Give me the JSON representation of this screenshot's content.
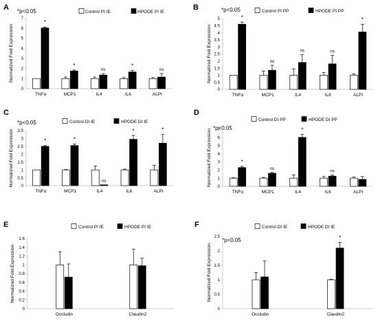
{
  "colors": {
    "control_fill": "#ffffff",
    "treatment_fill": "#000000",
    "stroke": "#000000",
    "axis": "#bfbfbf",
    "text": "#000000"
  },
  "chart_data": [
    {
      "type": "bar",
      "panel": "A",
      "significance_note": "*p<0.05",
      "ylabel": "Normalized Fold Expression",
      "ylim": [
        0,
        7
      ],
      "yticks": [
        0,
        1,
        2,
        3,
        4,
        5,
        6,
        7
      ],
      "grid": false,
      "legend": "top",
      "categories": [
        "TNFα",
        "MCP1",
        "IL4",
        "IL6",
        "ALPI"
      ],
      "series": [
        {
          "name": "Control PI IE",
          "values": [
            1,
            1,
            1,
            1,
            1
          ],
          "errors": [
            0,
            0.15,
            0.15,
            0.1,
            0.1
          ]
        },
        {
          "name": "HPODE PI IE",
          "values": [
            6.0,
            1.75,
            1.35,
            1.65,
            1.15
          ],
          "errors": [
            0.1,
            0.1,
            0.15,
            0.15,
            0.35
          ]
        }
      ],
      "annotations": [
        "*",
        "*",
        "ns",
        "*",
        "ns"
      ]
    },
    {
      "type": "bar",
      "panel": "B",
      "significance_note": "*p<0.05",
      "ylabel": "Normalized Fold Expression",
      "ylim": [
        0,
        5
      ],
      "yticks": [
        0,
        0.5,
        1,
        1.5,
        2,
        2.5,
        3,
        3.5,
        4,
        4.5,
        5
      ],
      "grid": false,
      "legend": "top",
      "categories": [
        "TNFα",
        "MCP1",
        "IL4",
        "IL6",
        "ALPI"
      ],
      "series": [
        {
          "name": "Control PI PP",
          "values": [
            1,
            1,
            1,
            1,
            1
          ],
          "errors": [
            0,
            0.3,
            0.45,
            0.2,
            0.1
          ]
        },
        {
          "name": "HPODE PI PP",
          "values": [
            4.6,
            1.35,
            1.9,
            1.8,
            4.05
          ],
          "errors": [
            0.15,
            0.35,
            0.55,
            0.6,
            0.55
          ]
        }
      ],
      "annotations": [
        "*",
        "ns",
        "ns",
        "ns",
        "*"
      ]
    },
    {
      "type": "bar",
      "panel": "C",
      "significance_note": "*p<0.05",
      "ylabel": "Normalized Fold Expression",
      "ylim": [
        0,
        3.5
      ],
      "yticks": [
        0,
        0.5,
        1,
        1.5,
        2,
        2.5,
        3,
        3.5
      ],
      "grid": false,
      "legend": "top",
      "categories": [
        "TNFα",
        "MCP1",
        "IL4",
        "IL6",
        "ALPI"
      ],
      "series": [
        {
          "name": "Control DI IE",
          "values": [
            1,
            1,
            1,
            1,
            1
          ],
          "errors": [
            0,
            0.03,
            0.25,
            0.05,
            0.3
          ]
        },
        {
          "name": "HPODE DI IE",
          "values": [
            2.5,
            2.55,
            0.05,
            2.95,
            2.7
          ],
          "errors": [
            0.05,
            0.1,
            0,
            0.25,
            0.55
          ]
        }
      ],
      "annotations": [
        "*",
        "*",
        "ns",
        "*",
        "*"
      ]
    },
    {
      "type": "bar",
      "panel": "D",
      "significance_note": "*p<0.05",
      "ylabel": "Normalized Fold Expression",
      "ylim": [
        0,
        7
      ],
      "yticks": [
        0,
        1,
        2,
        3,
        4,
        5,
        6,
        7
      ],
      "grid": false,
      "legend": "top",
      "categories": [
        "TNFα",
        "MCP1",
        "IL4",
        "IL6",
        "ALPI"
      ],
      "series": [
        {
          "name": "Control DI PP",
          "values": [
            1,
            1,
            1,
            1,
            1
          ],
          "errors": [
            0.05,
            0.1,
            0.4,
            0.2,
            0.15
          ]
        },
        {
          "name": "HPODE DI PP",
          "values": [
            2.3,
            1.6,
            6.0,
            1.25,
            0.85
          ],
          "errors": [
            0.15,
            0.1,
            0.35,
            0.15,
            0.35
          ]
        }
      ],
      "annotations": [
        "*",
        "ns",
        "*",
        "ns",
        ""
      ]
    },
    {
      "type": "bar",
      "panel": "E",
      "significance_note": "",
      "ylabel": "Normalized Fold Expression",
      "ylim": [
        0,
        1.6
      ],
      "yticks": [
        0,
        0.2,
        0.4,
        0.6,
        0.8,
        1,
        1.2,
        1.4,
        1.6
      ],
      "grid": false,
      "legend": "top",
      "categories": [
        "Occludin",
        "Claudin2"
      ],
      "series": [
        {
          "name": "Control PI IE",
          "values": [
            1,
            1
          ],
          "errors": [
            0.3,
            0.36
          ]
        },
        {
          "name": "HPODE PI IE",
          "values": [
            0.72,
            0.98
          ],
          "errors": [
            0.3,
            0.17
          ]
        }
      ],
      "annotations": [
        "",
        ""
      ]
    },
    {
      "type": "bar",
      "panel": "F",
      "significance_note": "*p<0.05",
      "ylabel": "Normalized Fold Expression",
      "ylim": [
        0,
        2.5
      ],
      "yticks": [
        0,
        0.5,
        1,
        1.5,
        2,
        2.5
      ],
      "grid": false,
      "legend": "top",
      "categories": [
        "Occludin",
        "Claudin2"
      ],
      "series": [
        {
          "name": "Control DI IE",
          "values": [
            1,
            1
          ],
          "errors": [
            0.25,
            0.02
          ]
        },
        {
          "name": "HPODE DI IE",
          "values": [
            1.1,
            2.1
          ],
          "errors": [
            0.55,
            0.2
          ]
        }
      ],
      "annotations": [
        "",
        "*"
      ]
    }
  ]
}
